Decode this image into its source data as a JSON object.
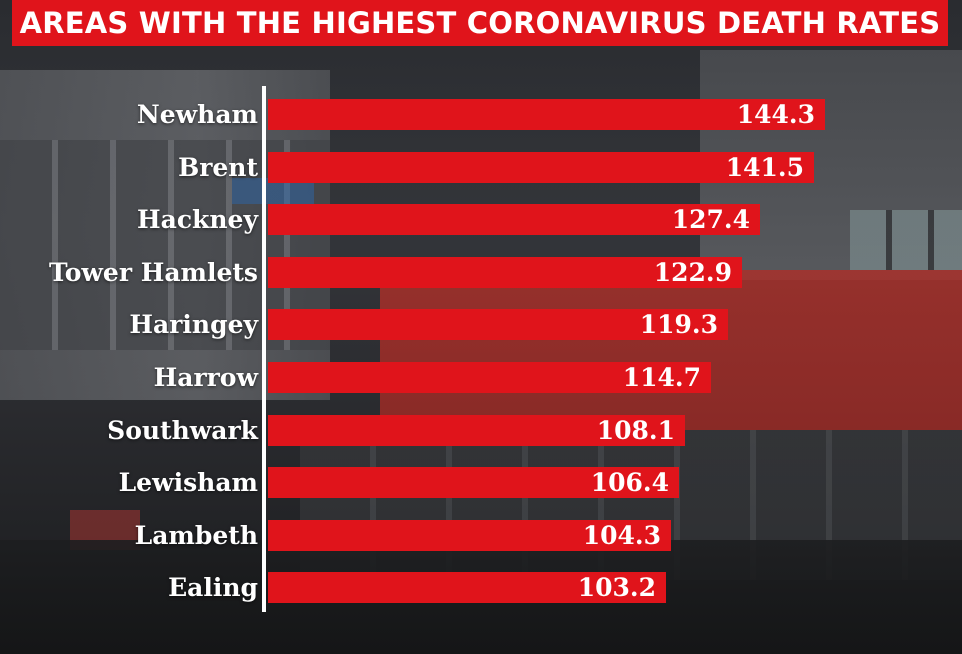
{
  "chart_data": {
    "type": "bar",
    "orientation": "horizontal",
    "title": "AREAS WITH THE HIGHEST CORONAVIRUS DEATH RATES",
    "categories": [
      "Newham",
      "Brent",
      "Hackney",
      "Tower Hamlets",
      "Haringey",
      "Harrow",
      "Southwark",
      "Lewisham",
      "Lambeth",
      "Ealing"
    ],
    "values": [
      144.3,
      141.5,
      127.4,
      122.9,
      119.3,
      114.7,
      108.1,
      106.4,
      104.3,
      103.2
    ],
    "value_labels": [
      "144.3",
      "141.5",
      "127.4",
      "122.9",
      "119.3",
      "114.7",
      "108.1",
      "106.4",
      "104.3",
      "103.2"
    ],
    "xlim": [
      0,
      150
    ],
    "grid": false,
    "bar_color": "#e0141b",
    "title_bg_color": "#e0141b",
    "text_color": "#ffffff"
  }
}
